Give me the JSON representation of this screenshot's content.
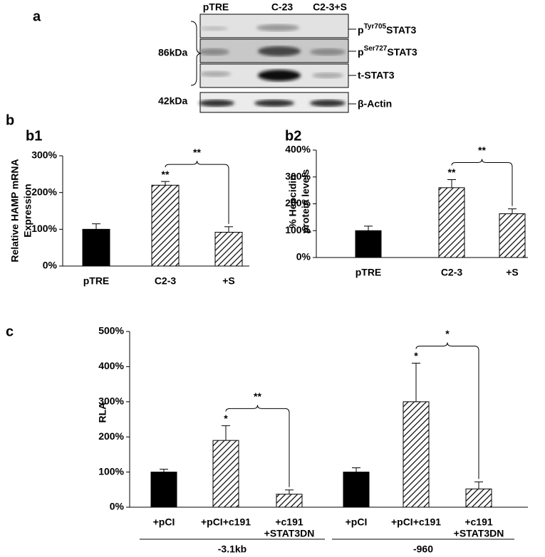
{
  "blot": {
    "panel_label": "a",
    "lanes": [
      "pTRE",
      "C-23",
      "C2-3+S"
    ],
    "size_labels": [
      "86kDa",
      "42kDa"
    ],
    "bands": [
      {
        "prefix": "p",
        "sup": "Tyr705",
        "name": "STAT3"
      },
      {
        "prefix": "p",
        "sup": "Ser727",
        "name": "STAT3"
      },
      {
        "name": "t-STAT3"
      },
      {
        "name": "β-Actin"
      }
    ]
  },
  "panel_b_label": "b",
  "chart_data": [
    {
      "type": "bar",
      "panel_label": "b1",
      "ylabel": [
        "Relative HAMP mRNA",
        "Expression"
      ],
      "categories": [
        "pTRE",
        "C2-3",
        "+S"
      ],
      "values": [
        100,
        220,
        92
      ],
      "errors": [
        15,
        10,
        15
      ],
      "fills": [
        "solid",
        "hatched",
        "hatched"
      ],
      "color": "#000000",
      "stars": [
        null,
        "**",
        null
      ],
      "brackets": [
        {
          "between": [
            1,
            2
          ],
          "label": "**"
        }
      ],
      "ylim": [
        0,
        300
      ],
      "yticks": [
        {
          "value": 0,
          "label": "0%"
        },
        {
          "value": 100,
          "label": "100%"
        },
        {
          "value": 200,
          "label": "200%"
        },
        {
          "value": 300,
          "label": "300%"
        }
      ]
    },
    {
      "type": "bar",
      "panel_label": "b2",
      "ylabel": [
        "% Hepcidin",
        "protein levels"
      ],
      "categories": [
        "pTRE",
        "C2-3",
        "+S"
      ],
      "values": [
        100,
        260,
        163
      ],
      "errors": [
        17,
        30,
        18
      ],
      "fills": [
        "solid",
        "hatched",
        "hatched"
      ],
      "color": "#000000",
      "stars": [
        null,
        "**",
        null
      ],
      "brackets": [
        {
          "between": [
            1,
            2
          ],
          "label": "**"
        }
      ],
      "ylim": [
        0,
        400
      ],
      "yticks": [
        {
          "value": 0,
          "label": "0%"
        },
        {
          "value": 100,
          "label": "100%"
        },
        {
          "value": 200,
          "label": "200%"
        },
        {
          "value": 300,
          "label": "300%"
        },
        {
          "value": 400,
          "label": "400%"
        }
      ]
    },
    {
      "type": "bar",
      "panel_label": "c",
      "ylabel": [
        "RLA"
      ],
      "categories": [
        [
          "+pCI"
        ],
        [
          "+pCI+c191"
        ],
        [
          "+c191",
          "+STAT3DN"
        ],
        [
          "+pCI"
        ],
        [
          "+pCI+c191"
        ],
        [
          "+c191",
          "+STAT3DN"
        ]
      ],
      "groups": [
        {
          "label": "-3.1kb",
          "between": [
            0,
            2
          ]
        },
        {
          "label": "-960",
          "between": [
            3,
            5
          ]
        }
      ],
      "values": [
        100,
        190,
        37,
        100,
        300,
        52
      ],
      "errors": [
        8,
        42,
        12,
        12,
        110,
        20
      ],
      "fills": [
        "solid",
        "hatched",
        "hatched",
        "solid",
        "hatched",
        "hatched"
      ],
      "color": "#000000",
      "stars": [
        null,
        "*",
        null,
        null,
        "*",
        null
      ],
      "brackets": [
        {
          "between": [
            1,
            2
          ],
          "label": "**"
        },
        {
          "between": [
            4,
            5
          ],
          "label": "*"
        }
      ],
      "ylim": [
        0,
        500
      ],
      "yticks": [
        {
          "value": 0,
          "label": "0%"
        },
        {
          "value": 100,
          "label": "100%"
        },
        {
          "value": 200,
          "label": "200%"
        },
        {
          "value": 300,
          "label": "300%"
        },
        {
          "value": 400,
          "label": "400%"
        },
        {
          "value": 500,
          "label": "500%"
        }
      ]
    }
  ]
}
